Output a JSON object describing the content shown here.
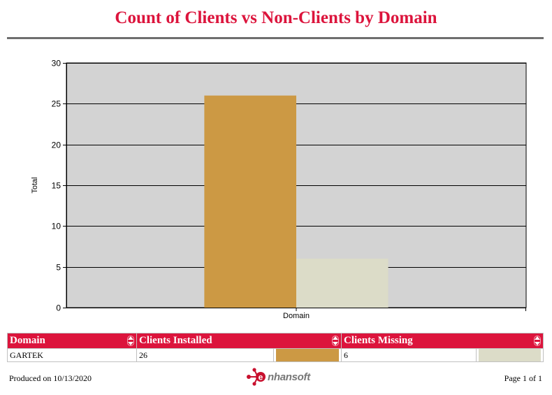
{
  "report": {
    "title": "Count of Clients vs Non-Clients by Domain",
    "produced_on": "Produced on 10/13/2020",
    "page": "Page 1 of 1",
    "logo_text": "nhansoft",
    "logo_letter": "e"
  },
  "colors": {
    "accent": "#dc143c",
    "plot_bg": "#d3d3d3",
    "installed": "#cc9944",
    "missing": "#dcdcc8"
  },
  "chart_data": {
    "type": "bar",
    "categories": [
      "Domain"
    ],
    "series": [
      {
        "values": [
          26
        ]
      },
      {
        "values": [
          6
        ]
      }
    ],
    "title": "",
    "xlabel": "",
    "ylabel": "Total",
    "ylim": [
      0,
      30
    ],
    "yticks": [
      "0",
      "5",
      "10",
      "15",
      "20",
      "25",
      "30"
    ],
    "grid": true,
    "legend": "none"
  },
  "table": {
    "headers": [
      "Domain",
      "Clients Installed",
      "Clients Missing"
    ],
    "rows": [
      {
        "domain": "GARTEK",
        "installed": "26",
        "missing": "6"
      }
    ]
  }
}
